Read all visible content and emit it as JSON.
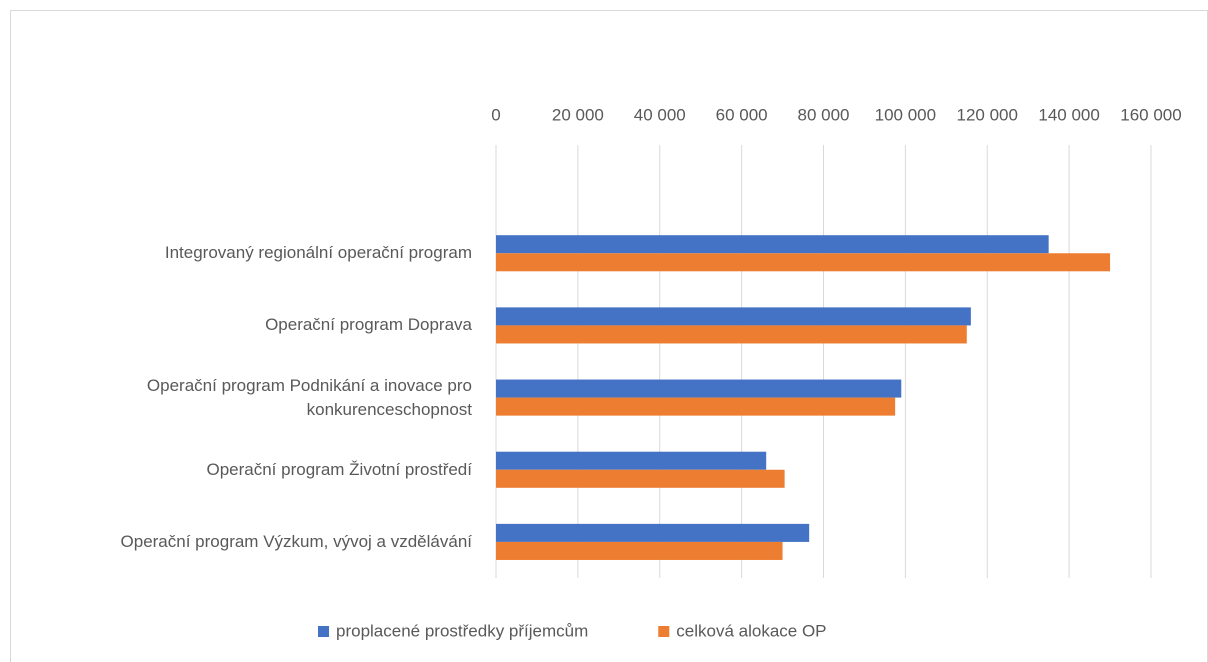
{
  "chart_data": {
    "type": "bar",
    "orientation": "horizontal",
    "categories": [
      null,
      "Integrovaný regionální operační program",
      "Operační program Doprava",
      "Operační program Podnikání a inovace pro konkurenceschopnost",
      "Operační program Životní prostředí",
      "Operační program Výzkum, vývoj a vzdělávání"
    ],
    "series": [
      {
        "name": "proplacené prostředky příjemcům",
        "color": "#4472c4",
        "values": [
          null,
          135000,
          116000,
          99000,
          66000,
          76500
        ]
      },
      {
        "name": "celková alokace OP",
        "color": "#ed7d31",
        "values": [
          null,
          150000,
          115000,
          97500,
          70500,
          70000
        ]
      }
    ],
    "xlim": [
      0,
      160000
    ],
    "xticks": [
      0,
      {
        "value": 20000,
        "label": "20 000"
      },
      {
        "value": 40000,
        "label": "40 000"
      },
      {
        "value": 60000,
        "label": "60 000"
      },
      {
        "value": 80000,
        "label": "80 000"
      },
      {
        "value": 100000,
        "label": "100 000"
      },
      {
        "value": 120000,
        "label": "120 000"
      },
      {
        "value": 140000,
        "label": "140 000"
      },
      {
        "value": 160000,
        "label": "160 000"
      }
    ],
    "grid": true,
    "legend": "bottom"
  }
}
